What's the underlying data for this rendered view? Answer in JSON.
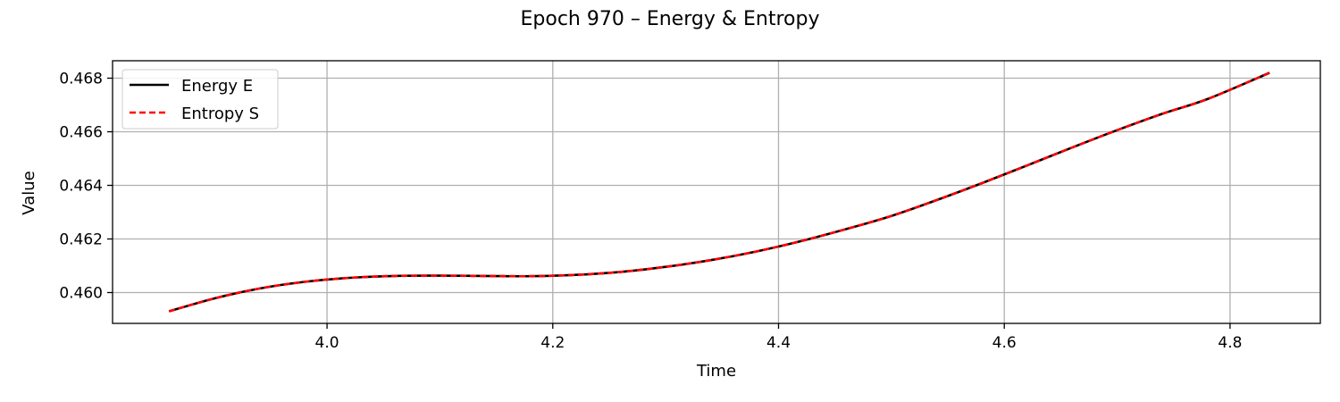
{
  "chart_data": {
    "type": "line",
    "title": "Epoch 970 – Energy & Entropy",
    "xlabel": "Time",
    "ylabel": "Value",
    "xlim": [
      3.81,
      4.88
    ],
    "ylim": [
      0.45885,
      0.46865
    ],
    "xticks": [
      4.0,
      4.2,
      4.4,
      4.6,
      4.8
    ],
    "xtick_labels": [
      "4.0",
      "4.2",
      "4.4",
      "4.6",
      "4.8"
    ],
    "yticks": [
      0.46,
      0.462,
      0.464,
      0.466,
      0.468
    ],
    "ytick_labels": [
      "0.460",
      "0.462",
      "0.464",
      "0.466",
      "0.468"
    ],
    "grid": true,
    "legend_position": "top-left",
    "series": [
      {
        "name": "Energy E",
        "color": "#000000",
        "style": "solid",
        "x": [
          3.86,
          3.9,
          3.94,
          3.98,
          4.02,
          4.06,
          4.1,
          4.14,
          4.18,
          4.22,
          4.26,
          4.3,
          4.34,
          4.38,
          4.42,
          4.46,
          4.5,
          4.54,
          4.58,
          4.62,
          4.66,
          4.7,
          4.74,
          4.78,
          4.835
        ],
        "y": [
          0.4593,
          0.45978,
          0.46015,
          0.4604,
          0.46055,
          0.46062,
          0.46063,
          0.46062,
          0.46061,
          0.46066,
          0.46077,
          0.46096,
          0.46121,
          0.46153,
          0.46192,
          0.46237,
          0.46286,
          0.46345,
          0.46408,
          0.46474,
          0.46541,
          0.46606,
          0.46667,
          0.46722,
          0.4682
        ]
      },
      {
        "name": "Entropy S",
        "color": "#ff0000",
        "style": "dashed",
        "x": [
          3.86,
          3.9,
          3.94,
          3.98,
          4.02,
          4.06,
          4.1,
          4.14,
          4.18,
          4.22,
          4.26,
          4.3,
          4.34,
          4.38,
          4.42,
          4.46,
          4.5,
          4.54,
          4.58,
          4.62,
          4.66,
          4.7,
          4.74,
          4.78,
          4.835
        ],
        "y": [
          0.4593,
          0.45978,
          0.46015,
          0.4604,
          0.46055,
          0.46062,
          0.46063,
          0.46062,
          0.46061,
          0.46066,
          0.46077,
          0.46096,
          0.46121,
          0.46153,
          0.46192,
          0.46237,
          0.46286,
          0.46345,
          0.46408,
          0.46474,
          0.46541,
          0.46606,
          0.46667,
          0.46722,
          0.4682
        ]
      }
    ]
  }
}
